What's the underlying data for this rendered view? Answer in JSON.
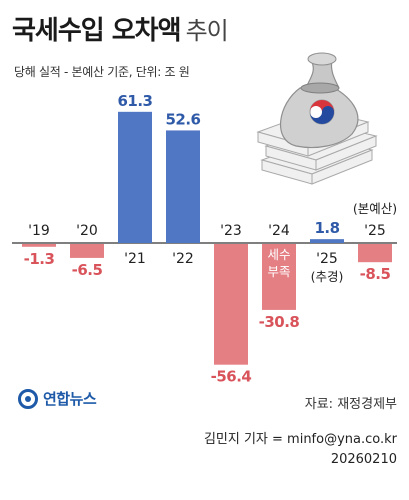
{
  "title_bold": "국세수입 오차액",
  "title_light": "추이",
  "subtitle": "당해 실적 - 본예산 기준, 단위: 조 원",
  "chart_data": {
    "type": "bar",
    "categories": [
      "'19",
      "'20",
      "'21",
      "'22",
      "'23",
      "'24",
      "'25",
      "'25"
    ],
    "values": [
      -1.3,
      -6.5,
      61.3,
      52.6,
      -56.4,
      -30.8,
      1.8,
      -8.5
    ],
    "value_labels": [
      "-1.3",
      "-6.5",
      "61.3",
      "52.6",
      "-56.4",
      "-30.8",
      "1.8",
      "-8.5"
    ],
    "category_notes": [
      "",
      "",
      "",
      "",
      "",
      "",
      "(추경)",
      "(본예산)"
    ],
    "annotation": [
      "세수",
      "부족"
    ],
    "colors": {
      "positive": "#4f77c3",
      "negative": "#e47f84",
      "positive_label": "#2f5aa8",
      "negative_label": "#d9535b"
    }
  },
  "logo_text": "연합뉴스",
  "source": "자료: 재정경제부",
  "credit": "김민지 기자 = minfo@yna.co.kr",
  "date": "20260210"
}
